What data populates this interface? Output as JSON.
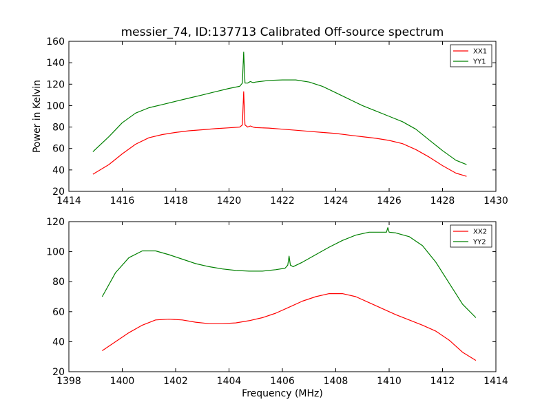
{
  "chart_data": [
    {
      "type": "line",
      "title": "messier_74, ID:137713 Calibrated Off-source spectrum",
      "xlabel": "",
      "ylabel": "Power in Kelvin",
      "xlim": [
        1414,
        1430
      ],
      "ylim": [
        20,
        160
      ],
      "xticks": [
        1414,
        1416,
        1418,
        1420,
        1422,
        1424,
        1426,
        1428,
        1430
      ],
      "yticks": [
        20,
        40,
        60,
        80,
        100,
        120,
        140,
        160
      ],
      "legend": "top-right",
      "grid": false,
      "series": [
        {
          "name": "XX1",
          "color": "#ff0000",
          "x": [
            1414.9,
            1415.5,
            1416.0,
            1416.5,
            1417.0,
            1417.5,
            1418.0,
            1418.5,
            1419.0,
            1419.5,
            1420.0,
            1420.4,
            1420.5,
            1420.55,
            1420.6,
            1420.7,
            1420.8,
            1420.9,
            1421.0,
            1421.5,
            1422.0,
            1422.5,
            1423.0,
            1423.5,
            1424.0,
            1424.5,
            1425.0,
            1425.5,
            1426.0,
            1426.5,
            1427.0,
            1427.5,
            1428.0,
            1428.5,
            1428.9
          ],
          "values": [
            36,
            45,
            55,
            64,
            70,
            73,
            75,
            76.5,
            77.5,
            78.5,
            79.3,
            80,
            82,
            113,
            82,
            80,
            81,
            80,
            79.5,
            79,
            78,
            77,
            76,
            75,
            74,
            72.5,
            71,
            69.5,
            67.5,
            64.5,
            59,
            52,
            44,
            37,
            34
          ]
        },
        {
          "name": "YY1",
          "color": "#008000",
          "x": [
            1414.9,
            1415.5,
            1416.0,
            1416.5,
            1417.0,
            1417.5,
            1418.0,
            1418.5,
            1419.0,
            1419.5,
            1420.0,
            1420.4,
            1420.5,
            1420.55,
            1420.6,
            1420.7,
            1420.8,
            1420.9,
            1421.0,
            1421.5,
            1422.0,
            1422.5,
            1423.0,
            1423.5,
            1424.0,
            1424.5,
            1425.0,
            1425.5,
            1426.0,
            1426.5,
            1427.0,
            1427.5,
            1428.0,
            1428.5,
            1428.9
          ],
          "values": [
            57,
            71,
            84,
            93,
            98,
            101,
            104,
            107,
            110,
            113,
            116,
            118,
            121,
            150,
            121,
            121,
            122.5,
            121.5,
            122,
            123.5,
            124,
            124,
            122,
            118,
            112,
            106,
            100,
            95,
            90,
            85,
            78,
            68,
            58,
            49,
            45
          ]
        }
      ]
    },
    {
      "type": "line",
      "title": "",
      "xlabel": "Frequency (MHz)",
      "ylabel": "",
      "xlim": [
        1398,
        1414
      ],
      "ylim": [
        20,
        120
      ],
      "xticks": [
        1398,
        1400,
        1402,
        1404,
        1406,
        1408,
        1410,
        1412,
        1414
      ],
      "yticks": [
        20,
        40,
        60,
        80,
        100,
        120
      ],
      "legend": "top-right",
      "grid": false,
      "series": [
        {
          "name": "XX2",
          "color": "#ff0000",
          "x": [
            1399.25,
            1399.75,
            1400.25,
            1400.75,
            1401.25,
            1401.75,
            1402.25,
            1402.75,
            1403.25,
            1403.75,
            1404.25,
            1404.75,
            1405.25,
            1405.75,
            1406.25,
            1406.75,
            1407.25,
            1407.75,
            1408.25,
            1408.75,
            1409.25,
            1409.75,
            1410.25,
            1410.75,
            1411.25,
            1411.75,
            1412.25,
            1412.75,
            1413.25
          ],
          "values": [
            34,
            40,
            46,
            51,
            54.5,
            55,
            54.5,
            53,
            52,
            52,
            52.5,
            54,
            56,
            59,
            63,
            67,
            70,
            72,
            72,
            70,
            66,
            62,
            58,
            54.5,
            51,
            47,
            41,
            33,
            27.5
          ]
        },
        {
          "name": "YY2",
          "color": "#008000",
          "x": [
            1399.25,
            1399.75,
            1400.25,
            1400.75,
            1401.25,
            1401.75,
            1402.25,
            1402.75,
            1403.25,
            1403.75,
            1404.25,
            1404.75,
            1405.25,
            1405.75,
            1406.1,
            1406.2,
            1406.25,
            1406.3,
            1406.4,
            1406.75,
            1407.25,
            1407.75,
            1408.25,
            1408.75,
            1409.25,
            1409.75,
            1409.9,
            1409.95,
            1410.0,
            1410.25,
            1410.75,
            1411.25,
            1411.75,
            1412.25,
            1412.75,
            1413.25
          ],
          "values": [
            70,
            86,
            96,
            100.5,
            100.5,
            98,
            95,
            92,
            90,
            88.5,
            87.5,
            87,
            87,
            88,
            89,
            91,
            97,
            91,
            90,
            93,
            98,
            103,
            107.5,
            111,
            113,
            113,
            113,
            116,
            113,
            112.5,
            110,
            104,
            93,
            79,
            65,
            56
          ]
        }
      ]
    }
  ]
}
